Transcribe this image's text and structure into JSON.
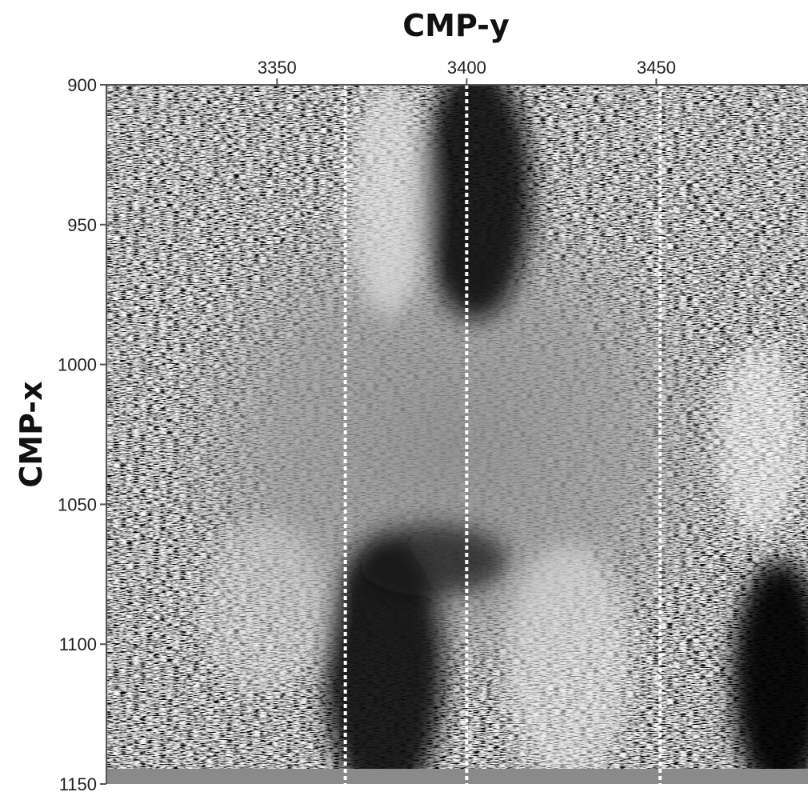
{
  "chart_data": {
    "type": "heatmap",
    "xlabel": "CMP-y",
    "ylabel": "CMP-x",
    "x_axis_position": "top",
    "y_axis_inverted": true,
    "xlim": [
      3305,
      3490
    ],
    "ylim": [
      900,
      1150
    ],
    "x_ticks": [
      {
        "value": 3350,
        "label": "3350"
      },
      {
        "value": 3400,
        "label": "3400"
      },
      {
        "value": 3450,
        "label": "3450"
      }
    ],
    "y_ticks": [
      {
        "value": 900,
        "label": "900"
      },
      {
        "value": 950,
        "label": "950"
      },
      {
        "value": 1000,
        "label": "1000"
      },
      {
        "value": 1050,
        "label": "1050"
      },
      {
        "value": 1100,
        "label": "1100"
      },
      {
        "value": 1150,
        "label": "1150"
      }
    ],
    "reference_lines": [
      {
        "orientation": "vertical",
        "style": "dotted",
        "color": "#ffffff",
        "x": 3368
      },
      {
        "orientation": "vertical",
        "style": "dotted",
        "color": "#ffffff",
        "x": 3400
      },
      {
        "orientation": "vertical",
        "style": "dotted",
        "color": "#ffffff",
        "x": 3451
      }
    ],
    "colormap": "grayscale",
    "grid": false,
    "legend": "none"
  },
  "colors": {
    "background": "#ffffff",
    "axis": "#555555",
    "bottom_band": "#8a8a8a",
    "reference_line": "#ffffff"
  }
}
